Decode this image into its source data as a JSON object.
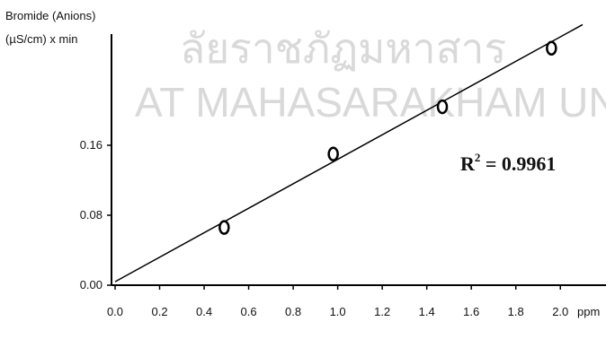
{
  "chart_data": {
    "type": "scatter",
    "watermark": [
      "ลัยราชภัฏมหาสาร",
      "AT MAHASARAKHAM UNIVE"
    ],
    "y_label": [
      "Bromide (Anions)",
      "(µS/cm) x min"
    ],
    "x_label": "ppm",
    "annotation": {
      "base": "R",
      "sup": "2",
      "rest": " = 0.9961"
    },
    "x": [
      0.49,
      0.98,
      1.47,
      1.96
    ],
    "values": [
      0.066,
      0.15,
      0.204,
      0.271
    ],
    "color": "#000000",
    "fit": {
      "x": [
        0.0,
        2.1
      ],
      "values": [
        0.004,
        0.298
      ]
    },
    "xlim": [
      0,
      2.1
    ],
    "ylim": [
      0,
      0.28
    ],
    "xticks": [
      {
        "value": 0,
        "label": "0.0"
      },
      0.2,
      0.4,
      0.6,
      0.8,
      {
        "value": 1,
        "label": "1.0"
      },
      1.2,
      1.4,
      1.6,
      1.8,
      {
        "value": 2,
        "label": "2.0"
      }
    ],
    "yticks": [
      {
        "value": 0,
        "label": "0.00"
      },
      {
        "value": 0.08,
        "label": "0.08"
      },
      {
        "value": 0.16,
        "label": "0.16"
      }
    ]
  }
}
